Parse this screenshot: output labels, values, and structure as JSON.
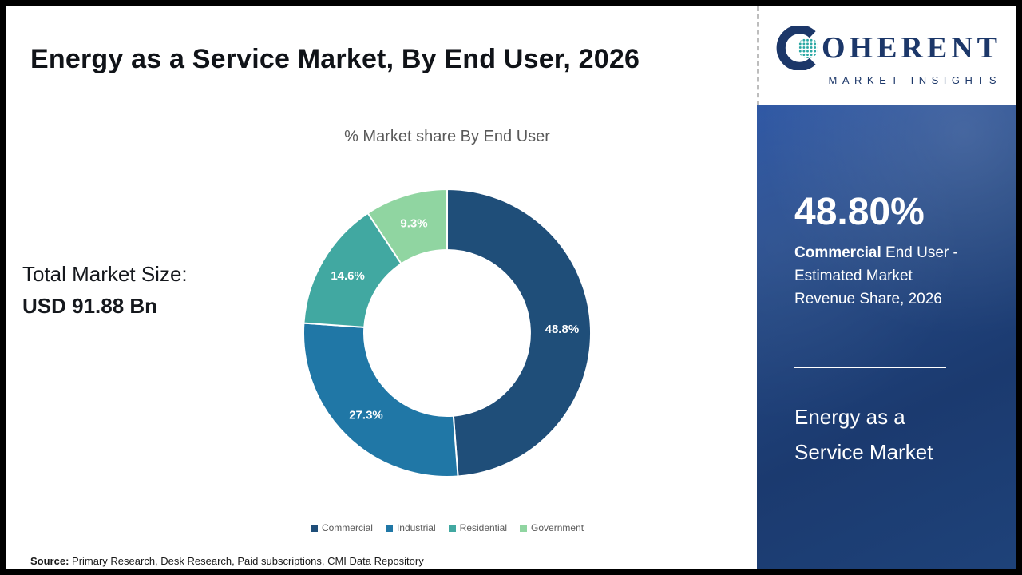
{
  "header": {
    "title": "Energy as a Service Market, By End User, 2026"
  },
  "logo": {
    "brand_initial": "C",
    "brand_rest": "OHERENT",
    "subtitle": "MARKET INSIGHTS"
  },
  "summary": {
    "total_label": "Total Market Size:",
    "total_value": "USD 91.88 Bn"
  },
  "chart_data": {
    "type": "pie",
    "title": "% Market share By End User",
    "categories": [
      "Commercial",
      "Industrial",
      "Residential",
      "Government"
    ],
    "values": [
      48.8,
      27.3,
      14.6,
      9.3
    ],
    "labels": [
      "48.8%",
      "27.3%",
      "14.6%",
      "9.3%"
    ],
    "colors": [
      "#1f4e79",
      "#2077a6",
      "#41a8a1",
      "#90d5a1"
    ],
    "donut": true,
    "start_angle_deg": 0,
    "legend_position": "bottom"
  },
  "side_panel": {
    "stat": "48.80%",
    "desc_bold": "Commercial",
    "desc_line1_rest": " End User -",
    "desc_line2": "Estimated Market",
    "desc_line3": "Revenue Share, 2026",
    "name_line1": "Energy as a",
    "name_line2": "Service Market",
    "background": "#1e4179"
  },
  "footer": {
    "source_label": "Source:",
    "source_text": " Primary Research, Desk Research, Paid subscriptions, CMI Data Repository"
  }
}
